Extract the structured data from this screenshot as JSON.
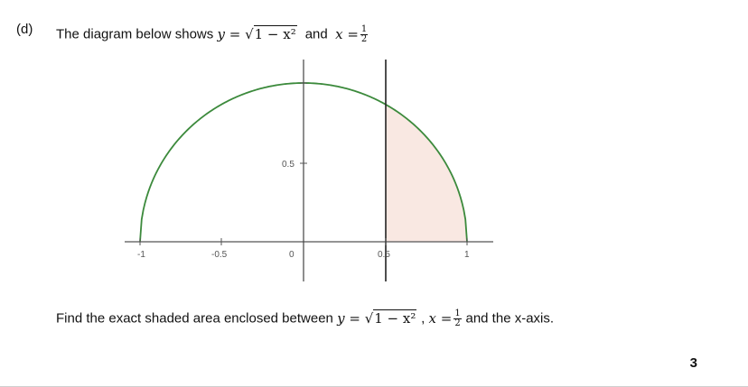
{
  "question": {
    "label": "(d)",
    "intro": "The diagram below shows",
    "conj": "and",
    "prompt_text": "Find the exact shaded area enclosed between",
    "prompt_tail": "and the x-axis.",
    "comma": ",",
    "marks": "3"
  },
  "math": {
    "y_var": "y",
    "equals": "=",
    "radical_symbol": "√",
    "radicand": "1 − x²",
    "x_var": "x",
    "frac_num": "1",
    "frac_den": "2"
  },
  "diagram": {
    "curve": "y = sqrt(1 - x^2)",
    "vertical_line_x": 0.5,
    "shaded_region": {
      "from_x": 0.5,
      "to_x": 1,
      "below": "curve",
      "above": "x-axis"
    },
    "x_range": [
      -1,
      1
    ],
    "y_range": [
      0,
      1
    ],
    "x_tick_labels": [
      "-1",
      "-0.5",
      "0",
      "0.5",
      "1"
    ],
    "y_tick_labels": [
      "0.5"
    ],
    "colors": {
      "curve": "#3c8a3c",
      "shading": "#f9e8e2",
      "axes": "#333333"
    }
  }
}
